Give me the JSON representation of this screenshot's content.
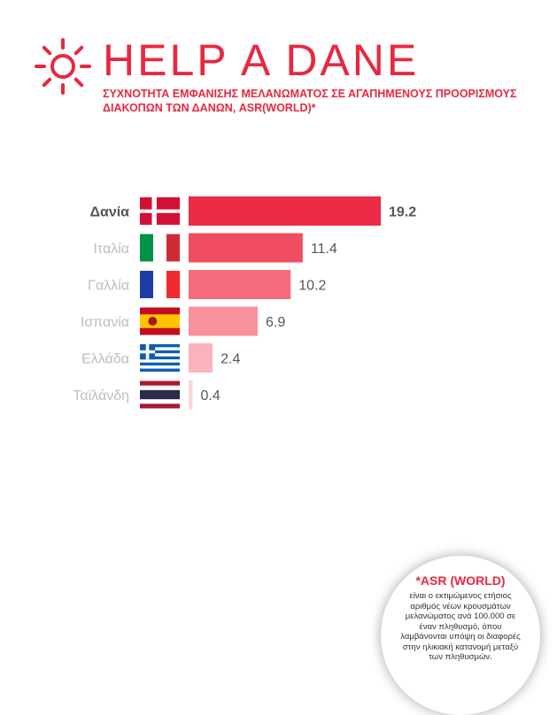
{
  "header": {
    "brand": "HELP A DANE",
    "subtitle_line1": "ΣΥΧΝΟΤΗΤΑ ΕΜΦΑΝΙΣΗΣ ΜΕΛΑΝΩΜΑΤΟΣ ΣΕ ΑΓΑΠΗΜΕΝΟΥΣ ΠΡΟΟΡΙΣΜΟΥΣ",
    "subtitle_line2": "ΔΙΑΚΟΠΩΝ ΤΩΝ ΔΑΝΩΝ, ASR(WORLD)*"
  },
  "colors": {
    "brand_red": "#e8283f",
    "bar_colors": [
      "#ec2a45",
      "#f04d62",
      "#f46b7c",
      "#f8919d",
      "#fbb3bb",
      "#fdd6da"
    ],
    "label_highlight": "#555555",
    "label_muted": "#bdbdbd"
  },
  "chart_data": {
    "type": "bar",
    "orientation": "horizontal",
    "title": "ΣΥΧΝΟΤΗΤΑ ΕΜΦΑΝΙΣΗΣ ΜΕΛΑΝΩΜΑΤΟΣ ΣΕ ΑΓΑΠΗΜΕΝΟΥΣ ΠΡΟΟΡΙΣΜΟΥΣ ΔΙΑΚΟΠΩΝ ΤΩΝ ΔΑΝΩΝ, ASR(WORLD)*",
    "categories": [
      "Δανία",
      "Ιταλία",
      "Γαλλία",
      "Ισπανία",
      "Ελλάδα",
      "Ταϊλάνδη"
    ],
    "values": [
      19.2,
      11.4,
      10.2,
      6.9,
      2.4,
      0.4
    ],
    "value_labels": [
      "19.2",
      "11.4",
      "10.2",
      "6.9",
      "2.4",
      "0.4"
    ],
    "flags": [
      "denmark-flag",
      "italy-flag",
      "france-flag",
      "spain-flag",
      "greece-flag",
      "thailand-flag"
    ],
    "highlight": "Δανία",
    "xlim": [
      0,
      19.2
    ],
    "grid": false,
    "xlabel": "",
    "ylabel": ""
  },
  "note": {
    "title": "*ASR (WORLD)",
    "body": "είναι ο εκτιμώμενος ετήσιος αριθμός νέων κρουσμάτων μελανώματος ανά 100.000 σε έναν πληθυσμό, όπου λαμβάνονται υπόψη οι διαφορές στην ηλικιακή κατανομή μεταξύ των πληθυσμών."
  }
}
